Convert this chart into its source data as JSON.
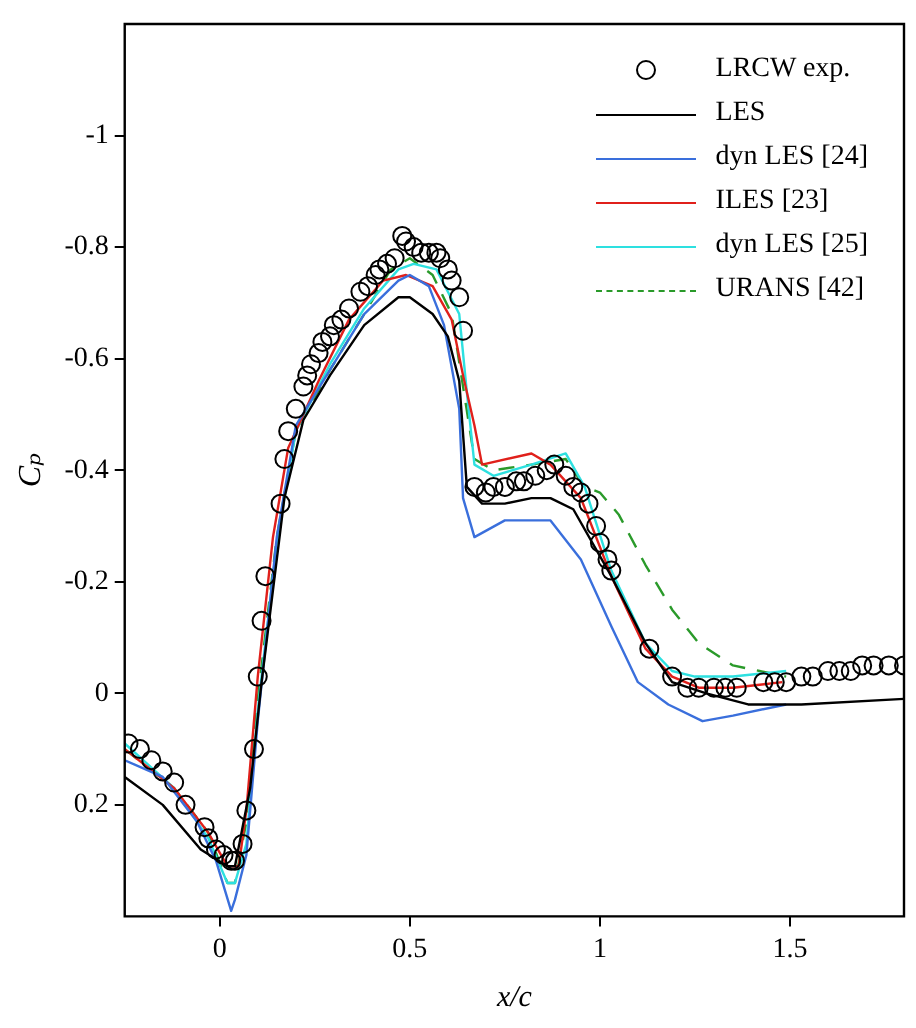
{
  "chart_data": {
    "type": "line",
    "xlabel": "x/c",
    "ylabel": "Cₚ",
    "xlim": [
      -0.25,
      1.8
    ],
    "ylim": [
      0.4,
      -1.2
    ],
    "xticks": [
      0,
      0.5,
      1,
      1.5
    ],
    "yticks": [
      0.2,
      0,
      -0.2,
      -0.4,
      -0.6,
      -0.8,
      -1
    ],
    "grid": false,
    "legend": "top right",
    "series": [
      {
        "name": "LRCW exp.",
        "type": "scatter",
        "marker": "circle",
        "color": "#000000",
        "x": [
          -0.24,
          -0.21,
          -0.18,
          -0.15,
          -0.12,
          -0.09,
          -0.04,
          -0.03,
          -0.01,
          0.01,
          0.03,
          0.04,
          0.06,
          0.07,
          0.09,
          0.1,
          0.11,
          0.12,
          0.16,
          0.17,
          0.18,
          0.2,
          0.22,
          0.23,
          0.24,
          0.26,
          0.27,
          0.29,
          0.3,
          0.32,
          0.34,
          0.37,
          0.39,
          0.41,
          0.42,
          0.44,
          0.46,
          0.48,
          0.49,
          0.51,
          0.53,
          0.55,
          0.57,
          0.58,
          0.6,
          0.61,
          0.63,
          0.64,
          0.67,
          0.7,
          0.72,
          0.75,
          0.78,
          0.8,
          0.83,
          0.86,
          0.88,
          0.91,
          0.93,
          0.95,
          0.97,
          0.99,
          1,
          1.02,
          1.03,
          1.13,
          1.19,
          1.23,
          1.26,
          1.3,
          1.33,
          1.36,
          1.43,
          1.46,
          1.49,
          1.53,
          1.56,
          1.6,
          1.63,
          1.66,
          1.69,
          1.72,
          1.76,
          1.8
        ],
        "values": [
          0.09,
          0.1,
          0.12,
          0.14,
          0.16,
          0.2,
          0.24,
          0.26,
          0.28,
          0.29,
          0.3,
          0.3,
          0.27,
          0.21,
          0.1,
          -0.03,
          -0.13,
          -0.21,
          -0.34,
          -0.42,
          -0.47,
          -0.51,
          -0.55,
          -0.57,
          -0.59,
          -0.61,
          -0.63,
          -0.64,
          -0.66,
          -0.67,
          -0.69,
          -0.72,
          -0.73,
          -0.75,
          -0.76,
          -0.77,
          -0.78,
          -0.82,
          -0.81,
          -0.8,
          -0.79,
          -0.79,
          -0.79,
          -0.78,
          -0.76,
          -0.74,
          -0.71,
          -0.65,
          -0.37,
          -0.36,
          -0.37,
          -0.37,
          -0.38,
          -0.38,
          -0.39,
          -0.4,
          -0.41,
          -0.39,
          -0.37,
          -0.36,
          -0.34,
          -0.3,
          -0.27,
          -0.24,
          -0.22,
          -0.08,
          -0.03,
          -0.01,
          -0.01,
          -0.01,
          -0.01,
          -0.01,
          -0.02,
          -0.02,
          -0.02,
          -0.03,
          -0.03,
          -0.04,
          -0.04,
          -0.04,
          -0.05,
          -0.05,
          -0.05,
          -0.05
        ]
      },
      {
        "name": "LES",
        "marker": "none",
        "line_style": "solid",
        "color": "#000000",
        "x": [
          -0.25,
          -0.15,
          -0.05,
          0.02,
          0.04,
          0.08,
          0.11,
          0.17,
          0.22,
          0.29,
          0.38,
          0.47,
          0.5,
          0.56,
          0.6,
          0.63,
          0.65,
          0.69,
          0.75,
          0.82,
          0.87,
          0.93,
          1.03,
          1.12,
          1.19,
          1.28,
          1.39,
          1.53,
          1.8
        ],
        "values": [
          0.15,
          0.2,
          0.28,
          0.31,
          0.31,
          0.17,
          -0.02,
          -0.35,
          -0.49,
          -0.57,
          -0.66,
          -0.71,
          -0.71,
          -0.68,
          -0.64,
          -0.56,
          -0.37,
          -0.34,
          -0.34,
          -0.35,
          -0.35,
          -0.33,
          -0.21,
          -0.09,
          -0.02,
          0,
          0.02,
          0.02,
          0.01
        ]
      },
      {
        "name": "dyn LES [24]",
        "marker": "none",
        "line_style": "solid",
        "color": "#3a6fdc",
        "x": [
          -0.25,
          -0.15,
          -0.06,
          -0.01,
          0.03,
          0.04,
          0.07,
          0.1,
          0.15,
          0.2,
          0.29,
          0.38,
          0.47,
          0.5,
          0.55,
          0.59,
          0.63,
          0.64,
          0.67,
          0.75,
          0.87,
          0.95,
          1.03,
          1.1,
          1.18,
          1.27,
          1.35,
          1.49
        ],
        "values": [
          0.12,
          0.15,
          0.23,
          0.3,
          0.39,
          0.37,
          0.29,
          0.05,
          -0.28,
          -0.48,
          -0.58,
          -0.68,
          -0.74,
          -0.75,
          -0.73,
          -0.66,
          -0.51,
          -0.35,
          -0.28,
          -0.31,
          -0.31,
          -0.24,
          -0.12,
          -0.02,
          0.02,
          0.05,
          0.04,
          0.02
        ]
      },
      {
        "name": "ILES [23]",
        "marker": "none",
        "line_style": "solid",
        "color": "#e0201b",
        "x": [
          -0.25,
          -0.12,
          -0.03,
          0.02,
          0.05,
          0.07,
          0.1,
          0.14,
          0.18,
          0.26,
          0.34,
          0.43,
          0.49,
          0.56,
          0.61,
          0.64,
          0.67,
          0.69,
          0.82,
          0.87,
          0.95,
          1.03,
          1.12,
          1.19,
          1.26,
          1.35,
          1.48
        ],
        "values": [
          0.1,
          0.17,
          0.25,
          0.31,
          0.31,
          0.21,
          -0.03,
          -0.28,
          -0.44,
          -0.56,
          -0.67,
          -0.74,
          -0.75,
          -0.73,
          -0.67,
          -0.57,
          -0.48,
          -0.41,
          -0.43,
          -0.41,
          -0.35,
          -0.21,
          -0.08,
          -0.03,
          -0.01,
          -0.01,
          -0.02
        ]
      },
      {
        "name": "dyn LES [25]",
        "marker": "none",
        "line_style": "solid",
        "color": "#2de0e0",
        "x": [
          -0.25,
          -0.12,
          -0.03,
          0.02,
          0.04,
          0.07,
          0.1,
          0.15,
          0.2,
          0.29,
          0.38,
          0.47,
          0.51,
          0.57,
          0.63,
          0.65,
          0.67,
          0.72,
          0.82,
          0.91,
          0.96,
          1.03,
          1.12,
          1.19,
          1.25,
          1.35,
          1.49
        ],
        "values": [
          0.09,
          0.17,
          0.26,
          0.34,
          0.34,
          0.27,
          0.03,
          -0.27,
          -0.47,
          -0.59,
          -0.69,
          -0.76,
          -0.77,
          -0.76,
          -0.68,
          -0.54,
          -0.41,
          -0.39,
          -0.41,
          -0.43,
          -0.37,
          -0.22,
          -0.09,
          -0.04,
          -0.03,
          -0.03,
          -0.04
        ]
      },
      {
        "name": "URANS [42]",
        "marker": "none",
        "line_style": "dashed",
        "color": "#2a9a2a",
        "x": [
          -0.25,
          -0.12,
          -0.03,
          0.02,
          0.04,
          0.07,
          0.1,
          0.15,
          0.2,
          0.29,
          0.38,
          0.45,
          0.5,
          0.56,
          0.61,
          0.64,
          0.67,
          0.72,
          0.82,
          0.91,
          0.96,
          1,
          1.05,
          1.12,
          1.19,
          1.26,
          1.35,
          1.42,
          1.49
        ],
        "values": [
          0.1,
          0.17,
          0.25,
          0.34,
          0.34,
          0.23,
          0.01,
          -0.28,
          -0.47,
          -0.58,
          -0.68,
          -0.76,
          -0.78,
          -0.75,
          -0.68,
          -0.55,
          -0.42,
          -0.4,
          -0.41,
          -0.42,
          -0.37,
          -0.36,
          -0.32,
          -0.23,
          -0.15,
          -0.09,
          -0.05,
          -0.04,
          -0.03
        ]
      }
    ]
  }
}
